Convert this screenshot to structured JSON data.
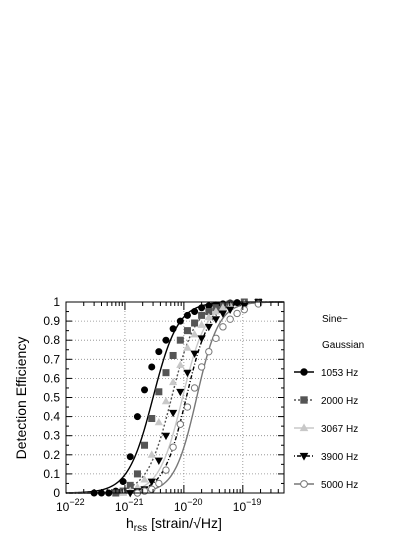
{
  "chart_data": {
    "type": "line",
    "xscale": "log",
    "xlim": [
      1e-22,
      5e-19
    ],
    "ylim": [
      0,
      1
    ],
    "grid": true,
    "ylabel": "Detection Efficiency",
    "xlabel_main": "h",
    "xlabel_sub": "rss",
    "xlabel_units": "[strain/√Hz]",
    "x_ticks": [
      {
        "base": "10",
        "exp": "−22",
        "value": 1e-22
      },
      {
        "base": "10",
        "exp": "−21",
        "value": 1e-21
      },
      {
        "base": "10",
        "exp": "−20",
        "value": 1e-20
      },
      {
        "base": "10",
        "exp": "−19",
        "value": 1e-19
      }
    ],
    "y_ticks": [
      "0",
      "0.1",
      "0.2",
      "0.3",
      "0.4",
      "0.5",
      "0.6",
      "0.7",
      "0.8",
      "0.9",
      "1"
    ],
    "legend_title_line1": "Sine−",
    "legend_title_line2": "Gaussian",
    "legend_position": "right",
    "series": [
      {
        "name": "1053 Hz",
        "color": "#000000",
        "marker": "circle",
        "filled": true,
        "dash": "none",
        "x50": 3e-21,
        "w": 1.7,
        "points": [
          [
            3e-22,
            0
          ],
          [
            4e-22,
            0
          ],
          [
            5.3e-22,
            0
          ],
          [
            7e-22,
            0.01
          ],
          [
            9.3e-22,
            0.06
          ],
          [
            1.23e-21,
            0.19
          ],
          [
            1.63e-21,
            0.4
          ],
          [
            2.15e-21,
            0.54
          ],
          [
            2.85e-21,
            0.66
          ],
          [
            3.76e-21,
            0.74
          ],
          [
            4.97e-21,
            0.8
          ],
          [
            6.57e-21,
            0.86
          ],
          [
            8.7e-21,
            0.9
          ],
          [
            1.15e-20,
            0.93
          ],
          [
            1.52e-20,
            0.95
          ],
          [
            2e-20,
            0.97
          ],
          [
            2.65e-20,
            0.98
          ],
          [
            3.5e-20,
            0.985
          ],
          [
            4.6e-20,
            0.99
          ],
          [
            6.1e-20,
            0.995
          ],
          [
            8e-20,
            0.997
          ],
          [
            1.06e-19,
            1.0
          ],
          [
            1.84e-19,
            1.0
          ]
        ]
      },
      {
        "name": "2000 Hz",
        "color": "#555555",
        "marker": "square",
        "filled": true,
        "dash": "2,2",
        "x50": 6.2e-21,
        "w": 1.65,
        "points": [
          [
            7e-22,
            0
          ],
          [
            9.3e-22,
            0.01
          ],
          [
            1.23e-21,
            0.04
          ],
          [
            1.63e-21,
            0.1
          ],
          [
            2.15e-21,
            0.25
          ],
          [
            2.85e-21,
            0.39
          ],
          [
            3.76e-21,
            0.53
          ],
          [
            4.97e-21,
            0.63
          ],
          [
            6.57e-21,
            0.72
          ],
          [
            8.7e-21,
            0.8
          ],
          [
            1.15e-20,
            0.85
          ],
          [
            1.52e-20,
            0.89
          ],
          [
            2e-20,
            0.93
          ],
          [
            2.65e-20,
            0.95
          ],
          [
            3.5e-20,
            0.97
          ],
          [
            4.6e-20,
            0.98
          ],
          [
            6.1e-20,
            0.99
          ],
          [
            1.06e-19,
            1.0
          ],
          [
            1.84e-19,
            1.0
          ]
        ]
      },
      {
        "name": "3067 Hz",
        "color": "#c8c8c8",
        "marker": "triangle-up",
        "filled": true,
        "dash": "none",
        "x50": 9.5e-21,
        "w": 1.6,
        "points": [
          [
            9.3e-22,
            0
          ],
          [
            1.23e-21,
            0.01
          ],
          [
            1.63e-21,
            0.03
          ],
          [
            2.15e-21,
            0.07
          ],
          [
            2.85e-21,
            0.2
          ],
          [
            3.76e-21,
            0.37
          ],
          [
            4.97e-21,
            0.48
          ],
          [
            6.57e-21,
            0.58
          ],
          [
            8.7e-21,
            0.67
          ],
          [
            1.15e-20,
            0.76
          ],
          [
            1.52e-20,
            0.83
          ],
          [
            2e-20,
            0.88
          ],
          [
            2.65e-20,
            0.92
          ],
          [
            3.5e-20,
            0.95
          ],
          [
            4.6e-20,
            0.97
          ],
          [
            6.1e-20,
            0.98
          ],
          [
            1.06e-19,
            0.99
          ],
          [
            1.84e-19,
            1.0
          ]
        ]
      },
      {
        "name": "3900 Hz",
        "color": "#000000",
        "marker": "triangle-down",
        "filled": true,
        "dash": "1,2,4,2",
        "x50": 1.1e-20,
        "w": 1.55,
        "points": [
          [
            1.23e-21,
            0
          ],
          [
            1.63e-21,
            0.01
          ],
          [
            2.15e-21,
            0.02
          ],
          [
            2.85e-21,
            0.06
          ],
          [
            3.76e-21,
            0.17
          ],
          [
            4.97e-21,
            0.3
          ],
          [
            6.57e-21,
            0.42
          ],
          [
            8.7e-21,
            0.53
          ],
          [
            1.15e-20,
            0.63
          ],
          [
            1.52e-20,
            0.73
          ],
          [
            2e-20,
            0.81
          ],
          [
            2.65e-20,
            0.87
          ],
          [
            3.5e-20,
            0.91
          ],
          [
            4.6e-20,
            0.94
          ],
          [
            6.1e-20,
            0.96
          ],
          [
            1.06e-19,
            0.98
          ],
          [
            1.84e-19,
            1.0
          ]
        ]
      },
      {
        "name": "5000 Hz",
        "color": "#777777",
        "marker": "circle",
        "filled": false,
        "dash": "none",
        "x50": 1.65e-20,
        "w": 1.5,
        "points": [
          [
            1.63e-21,
            0
          ],
          [
            2.15e-21,
            0.01
          ],
          [
            2.85e-21,
            0.02
          ],
          [
            3.76e-21,
            0.05
          ],
          [
            4.97e-21,
            0.12
          ],
          [
            6.57e-21,
            0.24
          ],
          [
            8.7e-21,
            0.36
          ],
          [
            1.15e-20,
            0.45
          ],
          [
            1.52e-20,
            0.55
          ],
          [
            2e-20,
            0.66
          ],
          [
            2.65e-20,
            0.74
          ],
          [
            3.5e-20,
            0.81
          ],
          [
            4.6e-20,
            0.87
          ],
          [
            6.1e-20,
            0.91
          ],
          [
            8e-20,
            0.94
          ],
          [
            1.06e-19,
            0.96
          ],
          [
            1.84e-19,
            0.99
          ]
        ]
      }
    ]
  }
}
